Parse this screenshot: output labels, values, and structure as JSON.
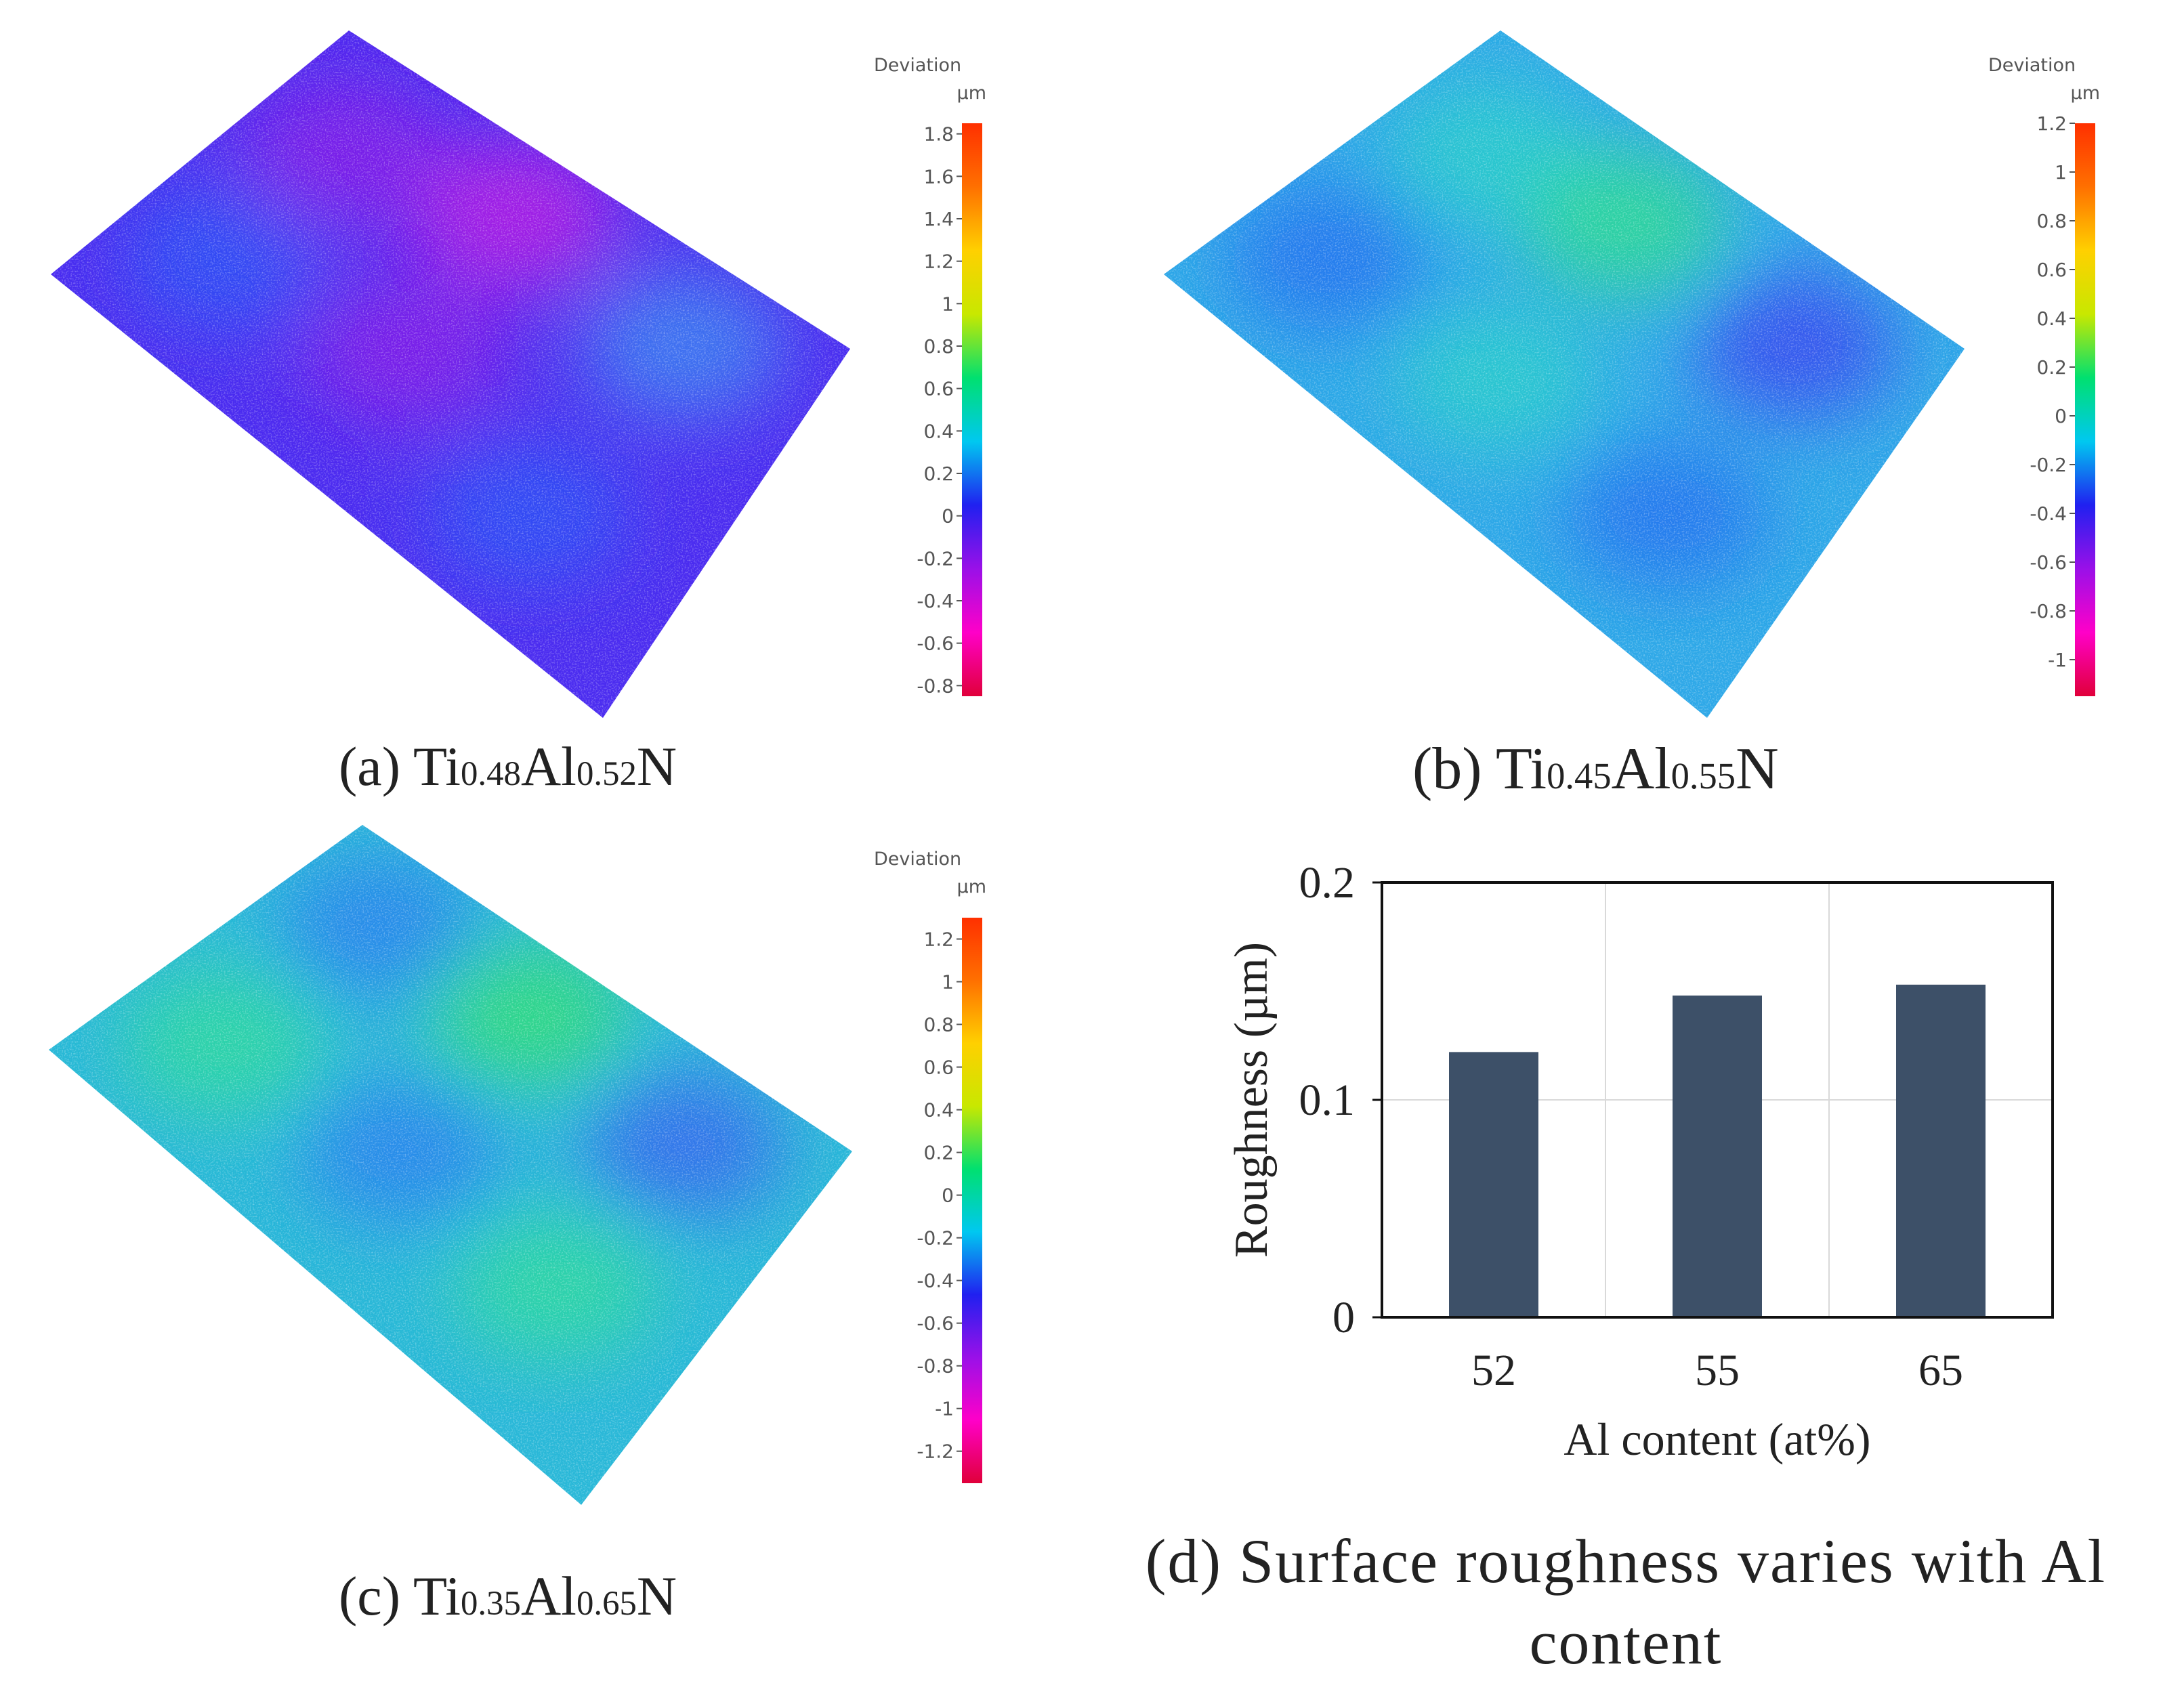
{
  "panels": [
    {
      "id": "a",
      "caption": {
        "label": "(a) Ti",
        "ti_sub": "0.48",
        "al": "Al",
        "al_sub": "0.52",
        "n": "N"
      },
      "colorbar": {
        "title": "Deviation",
        "unit": "µm",
        "ticks": [
          "1.8",
          "1.6",
          "1.4",
          "1.2",
          "1",
          "0.8",
          "0.6",
          "0.4",
          "0.2",
          "0",
          "-0.2",
          "-0.4",
          "-0.6",
          "-0.8"
        ],
        "range": [
          -0.85,
          1.85
        ],
        "first_tick": 1.8,
        "tick_step": -0.2
      },
      "surface_colors": [
        "#4b2cf0",
        "#2a55f5",
        "#8a1ee6",
        "#c21be0",
        "#3a8ef0"
      ]
    },
    {
      "id": "b",
      "caption": {
        "label": "(b) Ti",
        "ti_sub": "0.45",
        "al": "Al",
        "al_sub": "0.55",
        "n": "N"
      },
      "colorbar": {
        "title": "Deviation",
        "unit": "µm",
        "ticks": [
          "1.2",
          "1",
          "0.8",
          "0.6",
          "0.4",
          "0.2",
          "0",
          "-0.2",
          "-0.4",
          "-0.6",
          "-0.8",
          "-1"
        ],
        "range": [
          -1.15,
          1.2
        ],
        "first_tick": 1.2,
        "tick_step": -0.2
      },
      "surface_colors": [
        "#2ea8e8",
        "#1f6df0",
        "#27d0c8",
        "#2be08a",
        "#3b3ff0"
      ]
    },
    {
      "id": "c",
      "caption": {
        "label": "(c) Ti",
        "ti_sub": "0.35",
        "al": "Al",
        "al_sub": "0.65",
        "n": "N"
      },
      "colorbar": {
        "title": "Deviation",
        "unit": "µm",
        "ticks": [
          "1.2",
          "1",
          "0.8",
          "0.6",
          "0.4",
          "0.2",
          "0",
          "-0.2",
          "-0.4",
          "-0.6",
          "-0.8",
          "-1",
          "-1.2"
        ],
        "range": [
          -1.35,
          1.3
        ],
        "first_tick": 1.2,
        "tick_step": -0.2
      },
      "surface_colors": [
        "#29b8d8",
        "#2bdc9a",
        "#2a7cf0",
        "#30e070",
        "#3460f0"
      ]
    }
  ],
  "colormap": [
    "#e0003a",
    "#ff00c8",
    "#9a10e8",
    "#2020f0",
    "#00c8f0",
    "#00e070",
    "#c8e800",
    "#ffd000",
    "#ff7000",
    "#ff3000"
  ],
  "chart_data": {
    "type": "bar",
    "categories": [
      "52",
      "55",
      "65"
    ],
    "values": [
      0.122,
      0.148,
      0.153
    ],
    "title": "(d) Surface roughness varies with Al content",
    "xlabel": "Al content (at%)",
    "ylabel": "Roughness (µm)",
    "ylim": [
      0,
      0.2
    ],
    "yticks": [
      "0",
      "0.1",
      "0.2"
    ],
    "grid": true,
    "bar_color": "#3d5068"
  }
}
